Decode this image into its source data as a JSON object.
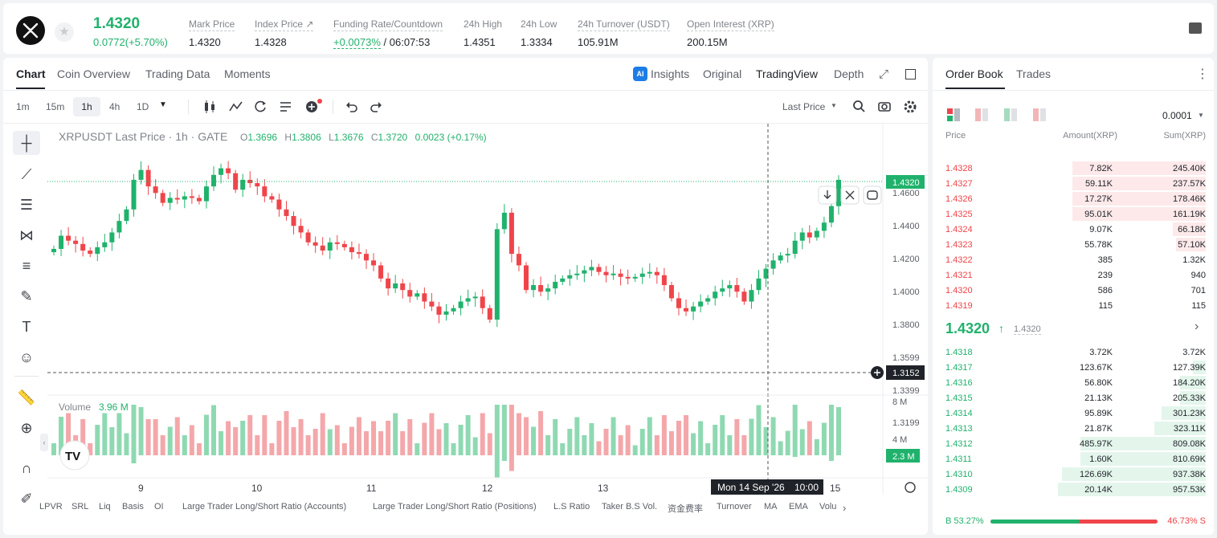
{
  "ticker": {
    "price": "1.4320",
    "change": "0.0772(+5.70%)"
  },
  "stats": [
    {
      "label": "Mark Price",
      "value": "1.4320"
    },
    {
      "label": "Index Price ↗",
      "value": "1.4328"
    },
    {
      "label": "Funding Rate/Countdown",
      "value_a": "+0.0073%",
      "value_b": " / 06:07:53"
    },
    {
      "label": "24h High",
      "value": "1.4351"
    },
    {
      "label": "24h Low",
      "value": "1.3334"
    },
    {
      "label": "24h Turnover (USDT)",
      "value": "105.91M"
    },
    {
      "label": "Open Interest (XRP)",
      "value": "200.15M"
    }
  ],
  "chart_tabs": [
    "Chart",
    "Coin Overview",
    "Trading Data",
    "Moments"
  ],
  "view_tabs": {
    "insights": "Insights",
    "original": "Original",
    "tradingview": "TradingView",
    "depth": "Depth",
    "ai_badge": "AI"
  },
  "intervals": [
    "1m",
    "15m",
    "1h",
    "4h",
    "1D"
  ],
  "price_type": "Last Price",
  "legend": {
    "symbol": "XRPUSDT Last Price · 1h · GATE",
    "o_lbl": "O",
    "o": "1.3696",
    "h_lbl": "H",
    "h": "1.3806",
    "l_lbl": "L",
    "l": "1.3676",
    "c_lbl": "C",
    "c": "1.3720",
    "chg": "0.0023 (+0.17%)"
  },
  "volume_legend": {
    "label": "Volume",
    "value": "3.96 M"
  },
  "price_axis": [
    "1.4600",
    "1.4400",
    "1.4200",
    "1.4000",
    "1.3800",
    "1.3599",
    "1.3399"
  ],
  "axis_partial": "1.3199",
  "last_price_tag": "1.4320",
  "crosshair_tag": "1.3152",
  "volume_axis": [
    "8 M",
    "4 M"
  ],
  "volume_tag": "2.3 M",
  "time_axis": [
    "9",
    "10",
    "11",
    "12",
    "13",
    "15"
  ],
  "crosshair_time": "Mon 14 Sep '26",
  "crosshair_hour": "10:00",
  "indicators": [
    "LPVR",
    "SRL",
    "Liq",
    "Basis",
    "OI",
    "Large Trader Long/Short Ratio (Accounts)",
    "Large Trader Long/Short Ratio (Positions)",
    "L.S Ratio",
    "Taker B.S Vol.",
    "资金费率",
    "Turnover",
    "MA",
    "EMA",
    "Volu"
  ],
  "tv_logo": "TV",
  "chart_data": {
    "type": "candlestick",
    "title": "XRPUSDT Last Price · 1h · GATE",
    "ylim": [
      1.305,
      1.47
    ],
    "price_ticks": [
      1.46,
      1.44,
      1.42,
      1.4,
      1.38,
      1.3599,
      1.3399
    ],
    "series": [
      {
        "name": "Volume",
        "values": []
      }
    ]
  },
  "orderbook": {
    "tabs": [
      "Order Book",
      "Trades"
    ],
    "precision": "0.0001",
    "headers": [
      "Price",
      "Amount(XRP)",
      "Sum(XRP)"
    ],
    "asks": [
      {
        "p": "1.4328",
        "a": "7.82K",
        "s": "245.40K",
        "w": 0.72
      },
      {
        "p": "1.4327",
        "a": "59.11K",
        "s": "237.57K",
        "w": 0.72
      },
      {
        "p": "1.4326",
        "a": "17.27K",
        "s": "178.46K",
        "w": 0.72
      },
      {
        "p": "1.4325",
        "a": "95.01K",
        "s": "161.19K",
        "w": 0.72
      },
      {
        "p": "1.4324",
        "a": "9.07K",
        "s": "66.18K",
        "w": 0.18
      },
      {
        "p": "1.4323",
        "a": "55.78K",
        "s": "57.10K",
        "w": 0.16
      },
      {
        "p": "1.4322",
        "a": "385",
        "s": "1.32K",
        "w": 0
      },
      {
        "p": "1.4321",
        "a": "239",
        "s": "940",
        "w": 0
      },
      {
        "p": "1.4320",
        "a": "586",
        "s": "701",
        "w": 0
      },
      {
        "p": "1.4319",
        "a": "115",
        "s": "115",
        "w": 0
      }
    ],
    "mid_price": "1.4320",
    "mid_mark": "1.4320",
    "bids": [
      {
        "p": "1.4318",
        "a": "3.72K",
        "s": "3.72K",
        "w": 0
      },
      {
        "p": "1.4317",
        "a": "123.67K",
        "s": "127.39K",
        "w": 0.07
      },
      {
        "p": "1.4316",
        "a": "56.80K",
        "s": "184.20K",
        "w": 0.14
      },
      {
        "p": "1.4315",
        "a": "21.13K",
        "s": "205.33K",
        "w": 0.14
      },
      {
        "p": "1.4314",
        "a": "95.89K",
        "s": "301.23K",
        "w": 0.24
      },
      {
        "p": "1.4313",
        "a": "21.87K",
        "s": "323.11K",
        "w": 0.28
      },
      {
        "p": "1.4312",
        "a": "485.97K",
        "s": "809.08K",
        "w": 0.68
      },
      {
        "p": "1.4311",
        "a": "1.60K",
        "s": "810.69K",
        "w": 0.68
      },
      {
        "p": "1.4310",
        "a": "126.69K",
        "s": "937.38K",
        "w": 0.78
      },
      {
        "p": "1.4309",
        "a": "20.14K",
        "s": "957.53K",
        "w": 0.8
      }
    ],
    "buy_ratio": "B 53.27%",
    "sell_ratio": "46.73% S",
    "buy_frac": 0.5327
  },
  "colors": {
    "up": "#20b26c",
    "down": "#ef454a",
    "accent": "#20b26c"
  }
}
